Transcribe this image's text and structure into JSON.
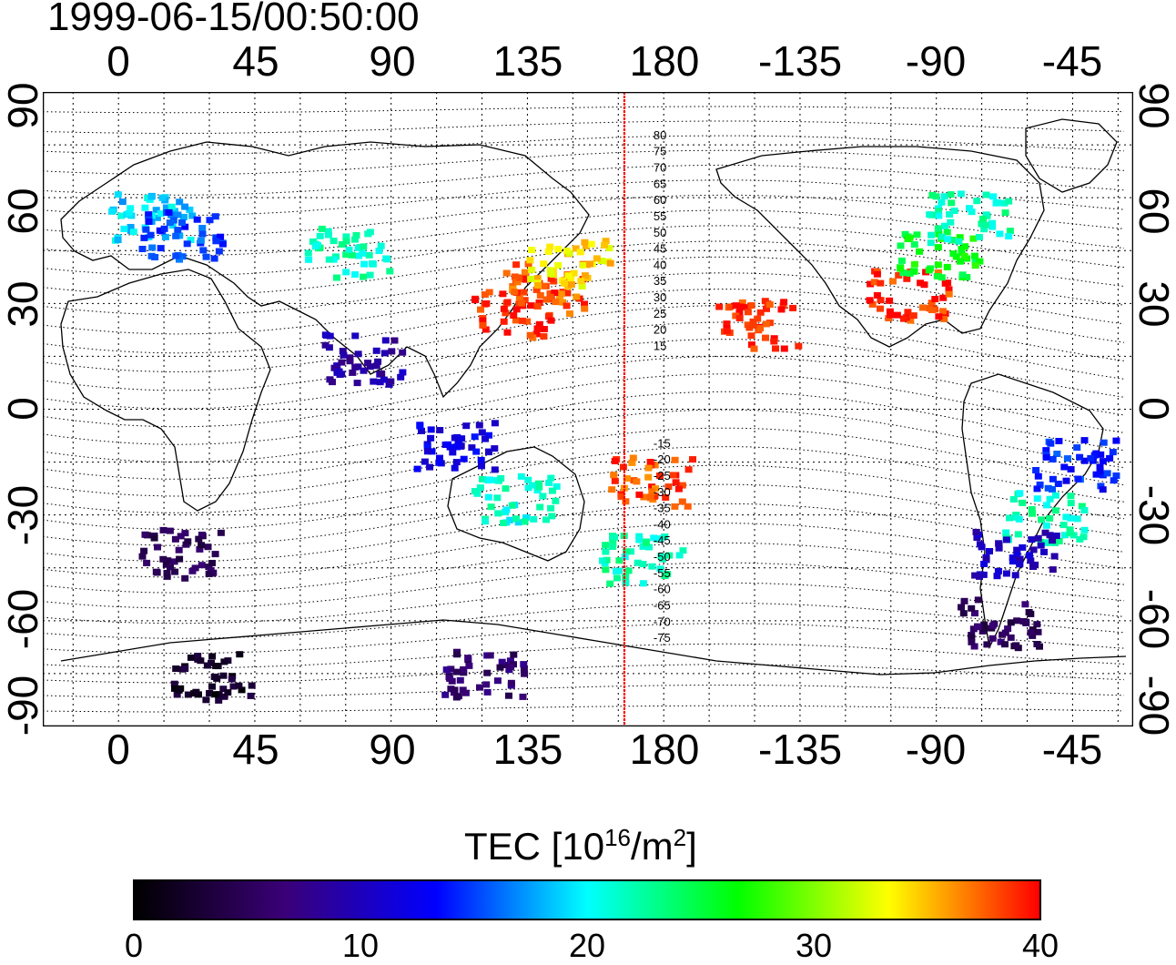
{
  "timestamp": "1999-06-15/00:50:00",
  "lon_ticks": [
    "0",
    "45",
    "90",
    "135",
    "180",
    "-135",
    "-90",
    "-45"
  ],
  "lat_ticks": [
    "90",
    "60",
    "30",
    "0",
    "-30",
    "-60",
    "-90"
  ],
  "mag_labels": [
    "80",
    "75",
    "70",
    "65",
    "60",
    "55",
    "50",
    "45",
    "40",
    "35",
    "30",
    "25",
    "20",
    "15",
    "-15",
    "-20",
    "-25",
    "-30",
    "-35",
    "-40",
    "-45",
    "-50",
    "-55",
    "-60",
    "-65",
    "-70",
    "-75"
  ],
  "colorbar": {
    "title_prefix": "TEC  [10",
    "title_exp": "16",
    "title_unit": "/m",
    "title_exp2": "2",
    "title_close": "]",
    "ticks": [
      "0",
      "10",
      "20",
      "30",
      "40"
    ],
    "min": 0,
    "max": 40,
    "colors": [
      "#000000",
      "#3a0078",
      "#0000ff",
      "#00ffff",
      "#00ff00",
      "#ffff00",
      "#ff0000"
    ]
  },
  "colors": {
    "meridian_marker": "#ff0000",
    "grid": "#000000"
  },
  "chart_data": {
    "type": "map",
    "title": "1999-06-15/00:50:00",
    "xlim": [
      -25,
      335
    ],
    "ylim": [
      -90,
      90
    ],
    "grid": true,
    "colorbar_range": [
      0,
      40
    ],
    "vertical_marker_lon": 167,
    "tec_regions": [
      {
        "lon": 10,
        "lat": 55,
        "tec": 19
      },
      {
        "lon": 20,
        "lat": 50,
        "tec": 15
      },
      {
        "lon": 75,
        "lat": 45,
        "tec": 22
      },
      {
        "lon": 140,
        "lat": 35,
        "tec": 38
      },
      {
        "lon": 130,
        "lat": 28,
        "tec": 39
      },
      {
        "lon": 148,
        "lat": 42,
        "tec": 34
      },
      {
        "lon": -100,
        "lat": 33,
        "tec": 39
      },
      {
        "lon": -90,
        "lat": 45,
        "tec": 26
      },
      {
        "lon": -80,
        "lat": 55,
        "tec": 22
      },
      {
        "lon": -150,
        "lat": 25,
        "tec": 39
      },
      {
        "lon": 175,
        "lat": -20,
        "tec": 38
      },
      {
        "lon": 130,
        "lat": -25,
        "tec": 21
      },
      {
        "lon": 172,
        "lat": -42,
        "tec": 22
      },
      {
        "lon": -45,
        "lat": -15,
        "tec": 14
      },
      {
        "lon": -55,
        "lat": -30,
        "tec": 22
      },
      {
        "lon": -65,
        "lat": -40,
        "tec": 10
      },
      {
        "lon": -70,
        "lat": -60,
        "tec": 5
      },
      {
        "lon": 120,
        "lat": -75,
        "tec": 6
      },
      {
        "lon": 20,
        "lat": -40,
        "tec": 5
      },
      {
        "lon": 30,
        "lat": -75,
        "tec": 2
      },
      {
        "lon": 110,
        "lat": -10,
        "tec": 12
      },
      {
        "lon": 80,
        "lat": 15,
        "tec": 9
      }
    ]
  }
}
